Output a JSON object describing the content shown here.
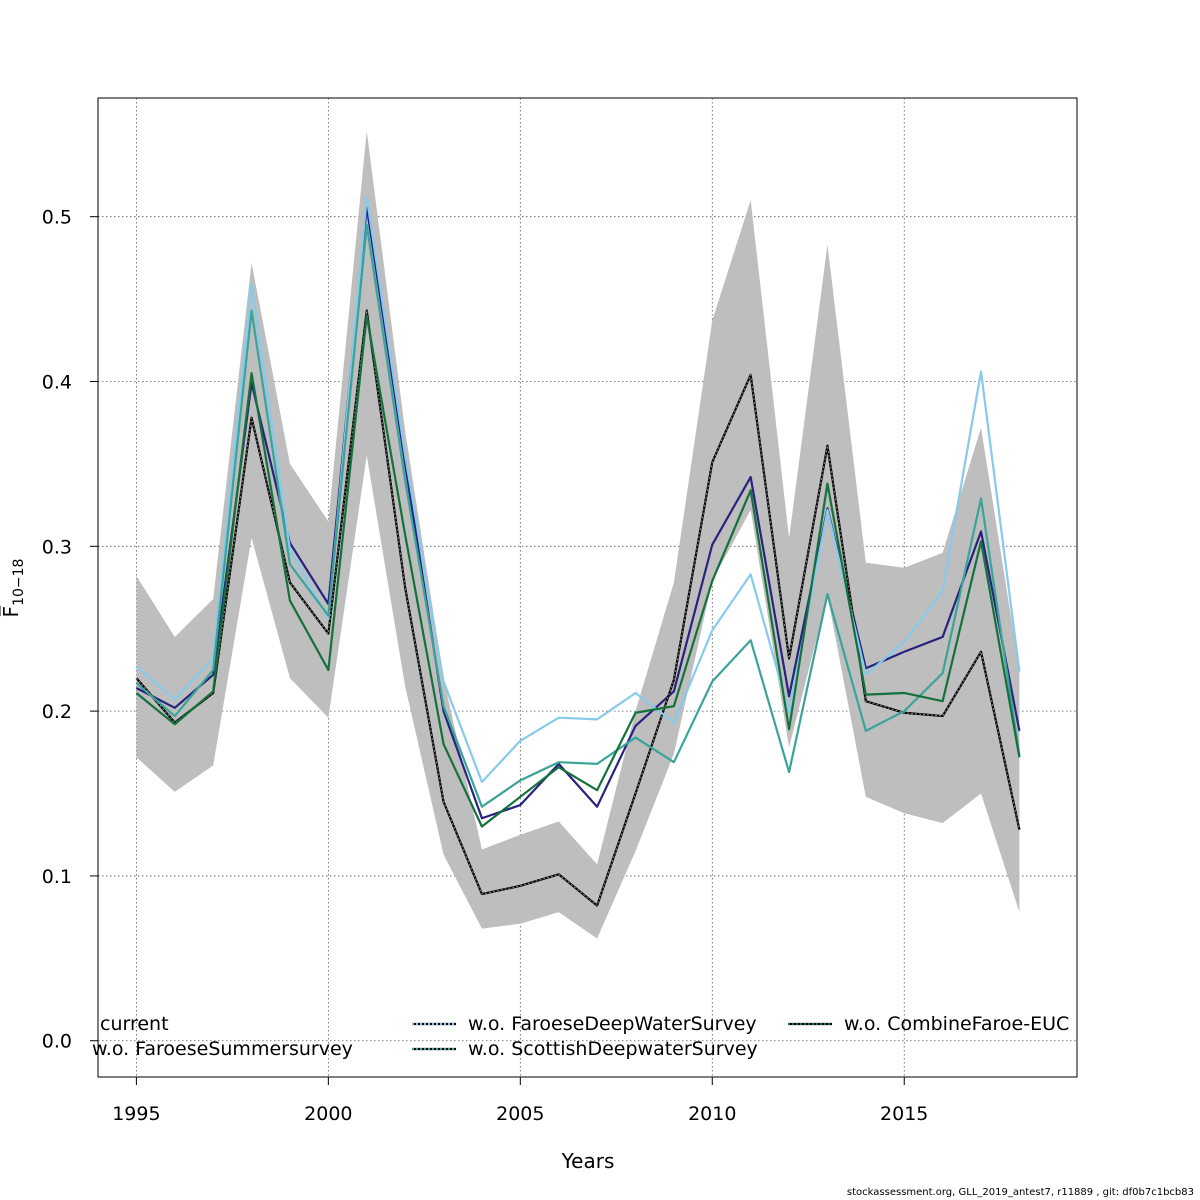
{
  "chart_data": {
    "type": "line",
    "xlabel": "Years",
    "ylabel": "F̅",
    "ylabel_sub": "10−18",
    "xlim": [
      1994,
      2019.5
    ],
    "ylim": [
      -0.022,
      0.572
    ],
    "xticks": [
      1995,
      2000,
      2005,
      2010,
      2015
    ],
    "yticks": [
      0.0,
      0.1,
      0.2,
      0.3,
      0.4,
      0.5
    ],
    "ytick_labels": [
      "0.0",
      "0.1",
      "0.2",
      "0.3",
      "0.4",
      "0.5"
    ],
    "grid": true,
    "x": [
      1995,
      1996,
      1997,
      1998,
      1999,
      2000,
      2001,
      2002,
      2003,
      2004,
      2005,
      2006,
      2007,
      2008,
      2009,
      2010,
      2011,
      2012,
      2013,
      2014,
      2015,
      2016,
      2017,
      2018
    ],
    "confidence_band": {
      "color": "#BEBEBE",
      "upper": [
        0.282,
        0.245,
        0.268,
        0.472,
        0.35,
        0.315,
        0.552,
        0.37,
        0.22,
        0.116,
        0.125,
        0.133,
        0.107,
        0.2,
        0.278,
        0.437,
        0.51,
        0.305,
        0.483,
        0.29,
        0.287,
        0.296,
        0.372,
        0.225
      ],
      "lower": [
        0.172,
        0.151,
        0.167,
        0.305,
        0.22,
        0.196,
        0.355,
        0.215,
        0.113,
        0.068,
        0.071,
        0.078,
        0.062,
        0.115,
        0.174,
        0.279,
        0.322,
        0.178,
        0.27,
        0.148,
        0.138,
        0.132,
        0.15,
        0.078
      ]
    },
    "series": [
      {
        "name": "current",
        "color": "#27237F",
        "dashed": false,
        "values": [
          0.214,
          0.202,
          0.222,
          0.399,
          0.302,
          0.265,
          0.506,
          0.35,
          0.2,
          0.135,
          0.143,
          0.168,
          0.142,
          0.191,
          0.212,
          0.301,
          0.342,
          0.209,
          0.323,
          0.226,
          0.236,
          0.245,
          0.309,
          0.188
        ]
      },
      {
        "name": "w.o. FaroeseSummersurvey",
        "color": "#000000",
        "dashed": false,
        "values": [
          0.22,
          0.193,
          0.211,
          0.378,
          0.278,
          0.247,
          0.443,
          0.275,
          0.145,
          0.089,
          0.094,
          0.101,
          0.082,
          0.15,
          0.219,
          0.351,
          0.404,
          0.232,
          0.361,
          0.206,
          0.199,
          0.197,
          0.236,
          0.128
        ]
      },
      {
        "name": "w.o. FaroeseDeepWaterSurvey",
        "color": "#87CAEB",
        "dashed": false,
        "values": [
          0.227,
          0.207,
          0.232,
          0.459,
          0.298,
          0.256,
          0.512,
          0.355,
          0.218,
          0.157,
          0.182,
          0.196,
          0.195,
          0.211,
          0.193,
          0.249,
          0.283,
          0.199,
          0.322,
          0.222,
          0.242,
          0.273,
          0.406,
          0.224
        ]
      },
      {
        "name": "w.o. ScottishDeepwaterSurvey",
        "color": "#3AA499",
        "dashed": false,
        "values": [
          0.217,
          0.197,
          0.225,
          0.443,
          0.289,
          0.258,
          0.495,
          0.34,
          0.203,
          0.142,
          0.158,
          0.169,
          0.168,
          0.184,
          0.169,
          0.218,
          0.243,
          0.163,
          0.271,
          0.188,
          0.2,
          0.223,
          0.329,
          0.173
        ]
      },
      {
        "name": "w.o. CombineFaroe-EUC",
        "color": "#14713C",
        "dashed": false,
        "values": [
          0.211,
          0.192,
          0.212,
          0.405,
          0.267,
          0.225,
          0.44,
          0.307,
          0.18,
          0.13,
          0.148,
          0.166,
          0.152,
          0.199,
          0.203,
          0.279,
          0.334,
          0.189,
          0.338,
          0.21,
          0.211,
          0.206,
          0.303,
          0.172
        ]
      }
    ],
    "legend": {
      "placement": "bottom",
      "entries": [
        {
          "label": "current",
          "color": "#27237F",
          "dotted": false
        },
        {
          "label": "w.o. FaroeseSummersurvey",
          "color": "#000000",
          "dotted": false
        },
        {
          "label": "w.o. FaroeseDeepWaterSurvey",
          "color": "#87CAEB",
          "dotted": true
        },
        {
          "label": "w.o. ScottishDeepwaterSurvey",
          "color": "#3AA499",
          "dotted": true
        },
        {
          "label": "w.o. CombineFaroe-EUC",
          "color": "#14713C",
          "dotted": true
        }
      ]
    }
  },
  "footer": "stockassessment.org, GLL_2019_antest7, r11889 , git: df0b7c1bcb83"
}
